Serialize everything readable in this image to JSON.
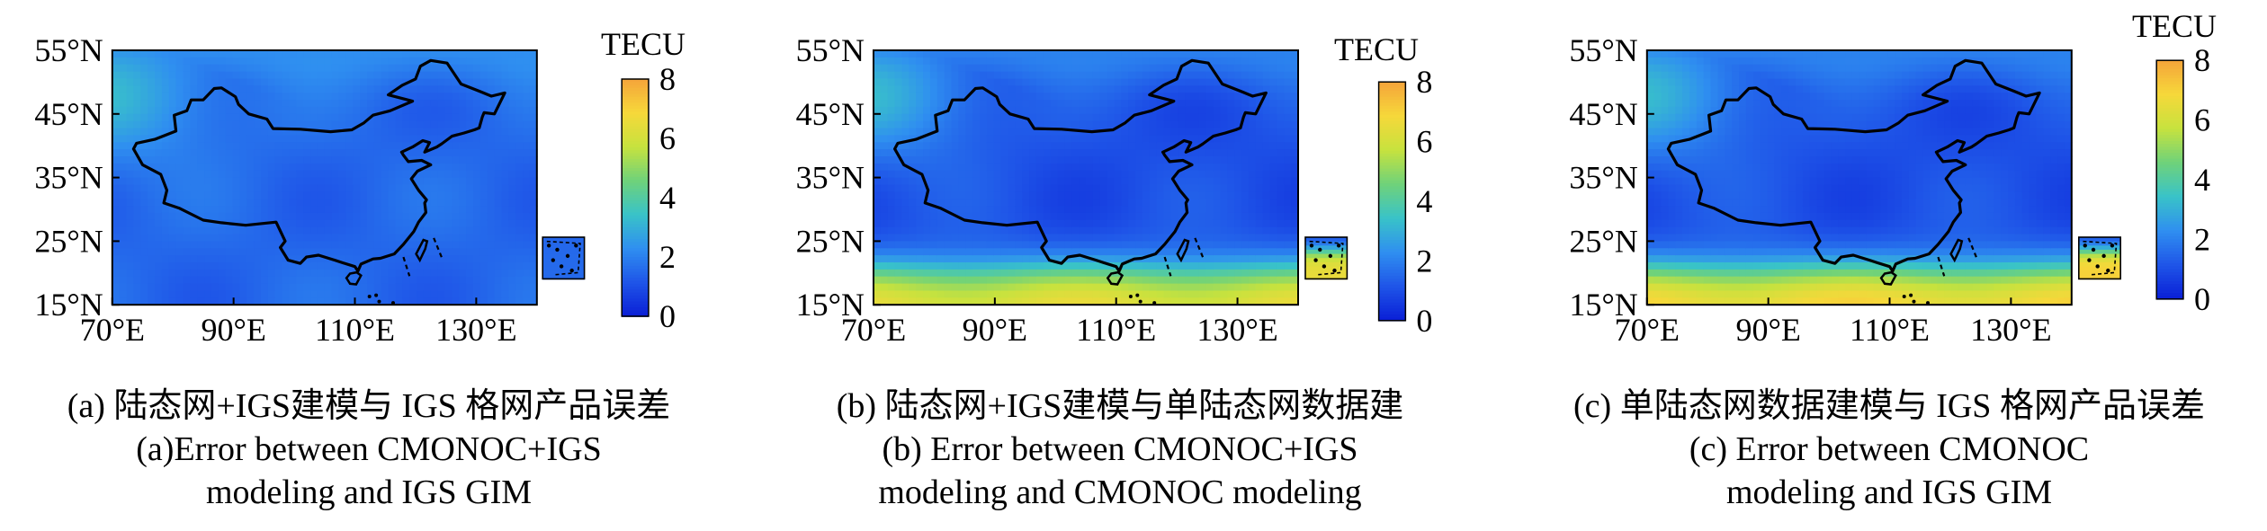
{
  "figure": {
    "colorbar_unit": "TECU",
    "colormap": [
      "#0a1fd6",
      "#1f55e8",
      "#2f8ff0",
      "#39c3c8",
      "#6fd27a",
      "#c7e23e",
      "#f6d83a",
      "#f5a43a"
    ],
    "land_border_color": "#000000"
  },
  "panels": [
    {
      "id": "a",
      "caption_zh": "(a) 陆态网+IGS建模与 IGS 格网产品误差",
      "caption_en_1": "(a)Error between CMONOC+IGS",
      "caption_en_2": "modeling and IGS GIM"
    },
    {
      "id": "b",
      "caption_zh": "(b) 陆态网+IGS建模与单陆态网数据建",
      "caption_en_1": "(b) Error between CMONOC+IGS",
      "caption_en_2": "modeling and CMONOC modeling"
    },
    {
      "id": "c",
      "caption_zh": "(c) 单陆态网数据建模与 IGS 格网产品误差",
      "caption_en_1": "(c) Error between CMONOC",
      "caption_en_2": "modeling and IGS GIM"
    }
  ],
  "chart_data": [
    {
      "type": "heatmap",
      "title": "",
      "xlabel": "",
      "ylabel": "",
      "x_ticks": [
        "70°E",
        "90°E",
        "110°E",
        "130°E"
      ],
      "y_ticks": [
        "55°N",
        "45°N",
        "35°N",
        "25°N",
        "15°N"
      ],
      "xlim": [
        70,
        140
      ],
      "ylim": [
        15,
        55
      ],
      "colorbar": {
        "label": "TECU",
        "range": [
          0,
          8
        ],
        "ticks": [
          "8",
          "6",
          "4",
          "2",
          "0"
        ]
      },
      "field_description_values": {
        "background_level_tecu": 1.5,
        "north_west_level_tecu": 3.0,
        "south_level_tecu": 1.5,
        "max_tecu": 3.5
      }
    },
    {
      "type": "heatmap",
      "title": "",
      "xlabel": "",
      "ylabel": "",
      "x_ticks": [
        "70°E",
        "90°E",
        "110°E",
        "130°E"
      ],
      "y_ticks": [
        "55°N",
        "45°N",
        "35°N",
        "25°N",
        "15°N"
      ],
      "xlim": [
        70,
        140
      ],
      "ylim": [
        15,
        55
      ],
      "colorbar": {
        "label": "TECU",
        "range": [
          0,
          8
        ],
        "ticks": [
          "8",
          "6",
          "4",
          "2",
          "0"
        ]
      },
      "field_description_values": {
        "background_level_tecu": 1.0,
        "north_west_level_tecu": 3.0,
        "south_level_tecu": 6.5,
        "max_tecu": 7.0
      }
    },
    {
      "type": "heatmap",
      "title": "",
      "xlabel": "",
      "ylabel": "",
      "x_ticks": [
        "70°E",
        "90°E",
        "110°E",
        "130°E"
      ],
      "y_ticks": [
        "55°N",
        "45°N",
        "35°N",
        "25°N",
        "15°N"
      ],
      "xlim": [
        70,
        140
      ],
      "ylim": [
        15,
        55
      ],
      "colorbar": {
        "label": "TECU",
        "range": [
          0,
          8
        ],
        "ticks": [
          "8",
          "6",
          "4",
          "2",
          "0"
        ]
      },
      "field_description_values": {
        "background_level_tecu": 1.0,
        "north_west_level_tecu": 3.0,
        "south_level_tecu": 7.0,
        "max_tecu": 7.5
      }
    }
  ]
}
